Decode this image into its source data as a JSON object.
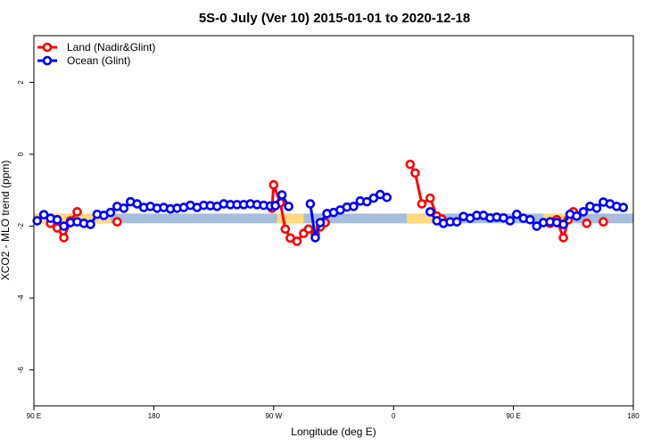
{
  "chart_data": {
    "type": "line",
    "title": "5S-0 July (Ver 10)   2015-01-01 to 2020-12-18",
    "xlabel": "Longitude (deg E)",
    "ylabel": "XCO2 - MLO trend (ppm)",
    "xlim": [
      90,
      450
    ],
    "ylim": [
      -7,
      3.3
    ],
    "x_ticks": [
      {
        "value": 90,
        "label": "90 E"
      },
      {
        "value": 162,
        "label": "180"
      },
      {
        "value": 234,
        "label": "90 W"
      },
      {
        "value": 306,
        "label": "0"
      },
      {
        "value": 378,
        "label": "90 E"
      },
      {
        "value": 450,
        "label": "180"
      }
    ],
    "y_ticks": [
      {
        "value": 2,
        "label": "2"
      },
      {
        "value": 0,
        "label": "0"
      },
      {
        "value": -2,
        "label": "-2"
      },
      {
        "value": -4,
        "label": "-4"
      },
      {
        "value": -6,
        "label": "-6"
      }
    ],
    "legend": {
      "position": "top-left",
      "items": [
        {
          "name": "Land (Nadir&Glint)",
          "color": "#ff0000"
        },
        {
          "name": "Ocean (Glint)",
          "color": "#0000ff"
        }
      ]
    },
    "surface_band": {
      "y_range": [
        -1.92,
        -1.65
      ],
      "ocean_color": "#a6bddb",
      "land_color": "#ffd980",
      "land_segments": [
        [
          90,
          136
        ],
        [
          236,
          252
        ],
        [
          314,
          334
        ],
        [
          396,
          414
        ]
      ]
    },
    "series": [
      {
        "name": "Land (Nadir&Glint)",
        "color": "#ff0000",
        "segments": [
          [
            [
              100,
              -1.92
            ],
            [
              104,
              -2.05
            ],
            [
              108,
              -2.32
            ],
            [
              112,
              -1.85
            ],
            [
              116,
              -1.6
            ]
          ],
          [
            [
              140,
              -1.88
            ]
          ],
          [
            [
              233,
              -1.5
            ],
            [
              234,
              -0.85
            ],
            [
              238,
              -1.35
            ],
            [
              241,
              -2.08
            ],
            [
              244,
              -2.33
            ],
            [
              248,
              -2.42
            ],
            [
              252,
              -2.2
            ],
            [
              255,
              -2.08
            ]
          ],
          [
            [
              259,
              -2.22
            ],
            [
              262,
              -2.02
            ],
            [
              265,
              -1.9
            ]
          ],
          [
            [
              316,
              -0.28
            ],
            [
              319,
              -0.52
            ],
            [
              323,
              -1.38
            ],
            [
              328,
              -1.22
            ],
            [
              332,
              -1.72
            ],
            [
              335,
              -1.8
            ]
          ],
          [
            [
              400,
              -1.92
            ],
            [
              404,
              -1.82
            ],
            [
              408,
              -2.32
            ],
            [
              411,
              -1.82
            ],
            [
              414,
              -1.6
            ]
          ],
          [
            [
              422,
              -1.92
            ]
          ],
          [
            [
              432,
              -1.88
            ]
          ]
        ]
      },
      {
        "name": "Ocean (Glint)",
        "color": "#0000ff",
        "segments": [
          [
            [
              92,
              -1.85
            ],
            [
              96,
              -1.68
            ],
            [
              100,
              -1.78
            ],
            [
              104,
              -1.82
            ],
            [
              108,
              -2.0
            ],
            [
              112,
              -1.9
            ],
            [
              116,
              -1.88
            ],
            [
              120,
              -1.92
            ],
            [
              124,
              -1.95
            ],
            [
              128,
              -1.67
            ],
            [
              132,
              -1.7
            ],
            [
              136,
              -1.62
            ],
            [
              140,
              -1.45
            ],
            [
              144,
              -1.5
            ],
            [
              148,
              -1.32
            ],
            [
              152,
              -1.38
            ],
            [
              156,
              -1.48
            ],
            [
              160,
              -1.45
            ],
            [
              164,
              -1.5
            ],
            [
              168,
              -1.48
            ],
            [
              172,
              -1.52
            ],
            [
              176,
              -1.5
            ],
            [
              180,
              -1.48
            ],
            [
              184,
              -1.42
            ],
            [
              188,
              -1.48
            ],
            [
              192,
              -1.42
            ],
            [
              196,
              -1.43
            ],
            [
              200,
              -1.45
            ],
            [
              204,
              -1.38
            ],
            [
              208,
              -1.4
            ],
            [
              212,
              -1.4
            ],
            [
              216,
              -1.4
            ],
            [
              220,
              -1.38
            ],
            [
              224,
              -1.4
            ],
            [
              228,
              -1.42
            ],
            [
              232,
              -1.44
            ],
            [
              235,
              -1.43
            ],
            [
              239,
              -1.13
            ],
            [
              243,
              -1.45
            ]
          ],
          [
            [
              256,
              -1.38
            ],
            [
              259,
              -2.32
            ],
            [
              262,
              -1.9
            ],
            [
              266,
              -1.65
            ],
            [
              270,
              -1.62
            ],
            [
              274,
              -1.55
            ],
            [
              278,
              -1.47
            ],
            [
              282,
              -1.45
            ],
            [
              286,
              -1.3
            ],
            [
              290,
              -1.32
            ],
            [
              294,
              -1.22
            ],
            [
              298,
              -1.12
            ],
            [
              302,
              -1.2
            ]
          ],
          [
            [
              328,
              -1.6
            ],
            [
              332,
              -1.85
            ],
            [
              336,
              -1.92
            ],
            [
              340,
              -1.88
            ],
            [
              344,
              -1.88
            ],
            [
              348,
              -1.73
            ],
            [
              352,
              -1.78
            ],
            [
              356,
              -1.7
            ],
            [
              360,
              -1.7
            ],
            [
              364,
              -1.77
            ],
            [
              368,
              -1.75
            ],
            [
              372,
              -1.77
            ],
            [
              376,
              -1.85
            ],
            [
              380,
              -1.67
            ],
            [
              384,
              -1.78
            ],
            [
              388,
              -1.82
            ],
            [
              392,
              -2.0
            ],
            [
              396,
              -1.9
            ],
            [
              400,
              -1.88
            ],
            [
              404,
              -1.9
            ],
            [
              408,
              -1.95
            ],
            [
              412,
              -1.67
            ],
            [
              416,
              -1.72
            ],
            [
              420,
              -1.6
            ],
            [
              424,
              -1.45
            ],
            [
              428,
              -1.5
            ],
            [
              432,
              -1.33
            ],
            [
              436,
              -1.38
            ],
            [
              440,
              -1.45
            ],
            [
              444,
              -1.48
            ]
          ]
        ]
      }
    ]
  }
}
